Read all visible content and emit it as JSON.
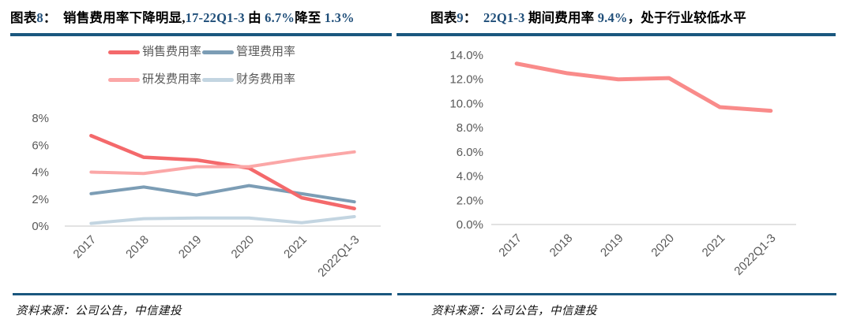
{
  "panels": [
    {
      "title_segments": [
        {
          "text": "图表",
          "color": "#000000"
        },
        {
          "text": "8",
          "color": "#1F4E79"
        },
        {
          "text": "：　",
          "color": "#000000"
        },
        {
          "text": "销售费用率下降明显,",
          "color": "#000000"
        },
        {
          "text": "17-22Q1-3 ",
          "color": "#1F4E79"
        },
        {
          "text": "由 ",
          "color": "#000000"
        },
        {
          "text": "6.7%",
          "color": "#1F4E79"
        },
        {
          "text": "降至 ",
          "color": "#000000"
        },
        {
          "text": "1.3%",
          "color": "#1F4E79"
        }
      ],
      "source": "资料来源：公司公告，中信建投"
    },
    {
      "title_segments": [
        {
          "text": "图表",
          "color": "#000000"
        },
        {
          "text": "9",
          "color": "#1F4E79"
        },
        {
          "text": "：　",
          "color": "#000000"
        },
        {
          "text": "22Q1-3 ",
          "color": "#1F4E79"
        },
        {
          "text": "期间费用率 ",
          "color": "#000000"
        },
        {
          "text": "9.4%",
          "color": "#1F4E79"
        },
        {
          "text": "，处于行业较低水平",
          "color": "#000000"
        }
      ],
      "source": "资料来源：公司公告，中信建投"
    }
  ],
  "chart_data": [
    {
      "type": "line",
      "title": "销售费用率下降明显,17-22Q1-3 由 6.7%降至 1.3%",
      "categories": [
        "2017",
        "2018",
        "2019",
        "2020",
        "2021",
        "2022Q1-3"
      ],
      "series": [
        {
          "name": "销售费用率",
          "color": "#F4696B",
          "width": 4.5,
          "z": 3,
          "values": [
            6.7,
            5.1,
            4.9,
            4.3,
            2.1,
            1.3
          ]
        },
        {
          "name": "管理费用率",
          "color": "#7C9DB5",
          "width": 4,
          "z": 1,
          "values": [
            2.4,
            2.9,
            2.3,
            3.0,
            2.4,
            1.8
          ]
        },
        {
          "name": "研发费用率",
          "color": "#FBA7A7",
          "width": 4,
          "z": 4,
          "values": [
            4.0,
            3.9,
            4.4,
            4.4,
            5.0,
            5.5
          ]
        },
        {
          "name": "财务费用率",
          "color": "#C3D5E1",
          "width": 4,
          "z": 2,
          "values": [
            0.2,
            0.55,
            0.6,
            0.6,
            0.25,
            0.7
          ]
        }
      ],
      "ylim": [
        0,
        8
      ],
      "ytick_labels": [
        "0%",
        "2%",
        "4%",
        "6%",
        "8%"
      ],
      "xlabel": "",
      "ylabel": "",
      "legend_position": "top",
      "grid": false,
      "baseline_color": "#D9D9D9"
    },
    {
      "type": "line",
      "title": "22Q1-3 期间费用率 9.4%，处于行业较低水平",
      "categories": [
        "2017",
        "2018",
        "2019",
        "2020",
        "2021",
        "2022Q1-3"
      ],
      "series": [
        {
          "name": "期间费用率",
          "color": "#F98B8A",
          "width": 5,
          "z": 1,
          "values": [
            13.3,
            12.5,
            12.0,
            12.1,
            9.7,
            9.4
          ]
        }
      ],
      "ylim": [
        0,
        14
      ],
      "ytick_labels": [
        "0.0%",
        "2.0%",
        "4.0%",
        "6.0%",
        "8.0%",
        "10.0%",
        "12.0%",
        "14.0%"
      ],
      "xlabel": "",
      "ylabel": "",
      "legend_position": "none",
      "grid": false,
      "baseline_color": "#D9D9D9"
    }
  ]
}
